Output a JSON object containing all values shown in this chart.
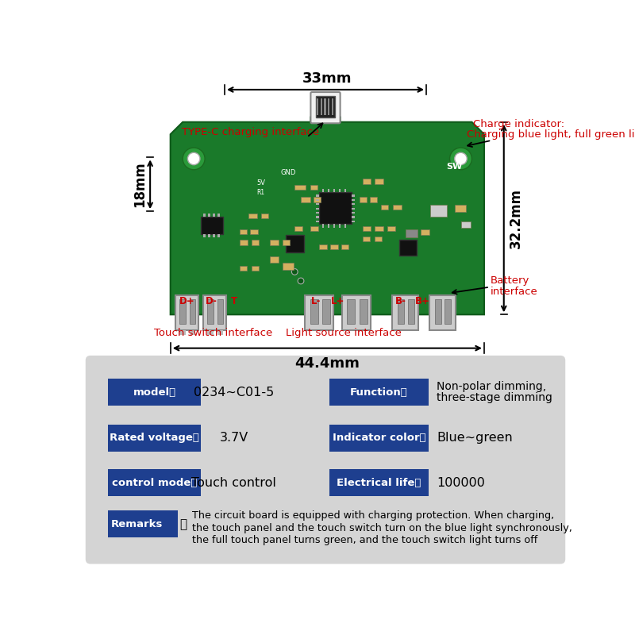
{
  "bg_color": "#ffffff",
  "bottom_bg_color": "#d4d4d4",
  "blue_btn_color": "#1e3f8f",
  "white_text": "#ffffff",
  "black_text": "#000000",
  "red_text": "#cc0000",
  "pcb_color": "#1a7a2a",
  "pcb_edge_color": "#0f5a1a",
  "dim_33mm": "33mm",
  "dim_44mm": "44.4mm",
  "dim_18mm": "18mm",
  "dim_32mm": "32.2mm",
  "label_type_c": "TYPE-C charging interface",
  "label_charge_indicator_1": "Charge indicator:",
  "label_charge_indicator_2": "Charging blue light, full green light",
  "label_touch": "Touch switch interface",
  "label_light_source": "Light source interface",
  "label_battery_1": "Battery",
  "label_battery_2": "interface",
  "rows": [
    {
      "left_label": "model：",
      "left_value": "0234~C01-5",
      "right_label": "Function：",
      "right_value_1": "Non-polar dimming,",
      "right_value_2": "three-stage dimming"
    },
    {
      "left_label": "Rated voltage：",
      "left_value": "3.7V",
      "right_label": "Indicator color：",
      "right_value_1": "Blue~green",
      "right_value_2": ""
    },
    {
      "left_label": "control mode：",
      "left_value": "Touch control",
      "right_label": "Electrical life：",
      "right_value_1": "100000",
      "right_value_2": ""
    }
  ],
  "remarks_label": "Remarks",
  "remarks_colon": "：",
  "remarks_lines": [
    "The circuit board is equipped with charging protection. When charging,",
    "the touch panel and the touch switch turn on the blue light synchronously,",
    "the full touch panel turns green, and the touch switch light turns off"
  ]
}
